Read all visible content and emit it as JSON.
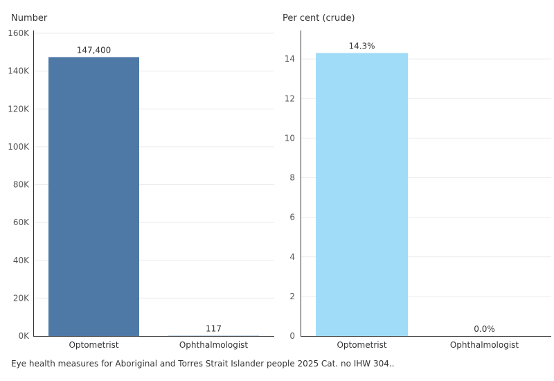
{
  "chart_data": [
    {
      "type": "bar",
      "ylabel": "Number",
      "categories": [
        "Optometrist",
        "Ophthalmologist"
      ],
      "values": [
        147400,
        117
      ],
      "data_labels": [
        "147,400",
        "117"
      ],
      "ylim": [
        0,
        160000
      ],
      "yticks": [
        0,
        20000,
        40000,
        60000,
        80000,
        100000,
        120000,
        140000,
        160000
      ],
      "ytick_labels": [
        "0K",
        "20K",
        "40K",
        "60K",
        "80K",
        "100K",
        "120K",
        "140K",
        "160K"
      ],
      "bar_color": "#4e79a7",
      "grid": true
    },
    {
      "type": "bar",
      "ylabel": "Per cent (crude)",
      "categories": [
        "Optometrist",
        "Ophthalmologist"
      ],
      "values": [
        14.3,
        0.0
      ],
      "data_labels": [
        "14.3%",
        "0.0%"
      ],
      "ylim": [
        0,
        15.3
      ],
      "yticks": [
        0,
        2,
        4,
        6,
        8,
        10,
        12,
        14
      ],
      "ytick_labels": [
        "0",
        "2",
        "4",
        "6",
        "8",
        "10",
        "12",
        "14"
      ],
      "bar_color": "#a0dcf8",
      "grid": true
    }
  ],
  "footer": "Eye health measures for Aboriginal and Torres Strait Islander people 2025 Cat. no IHW 304.."
}
